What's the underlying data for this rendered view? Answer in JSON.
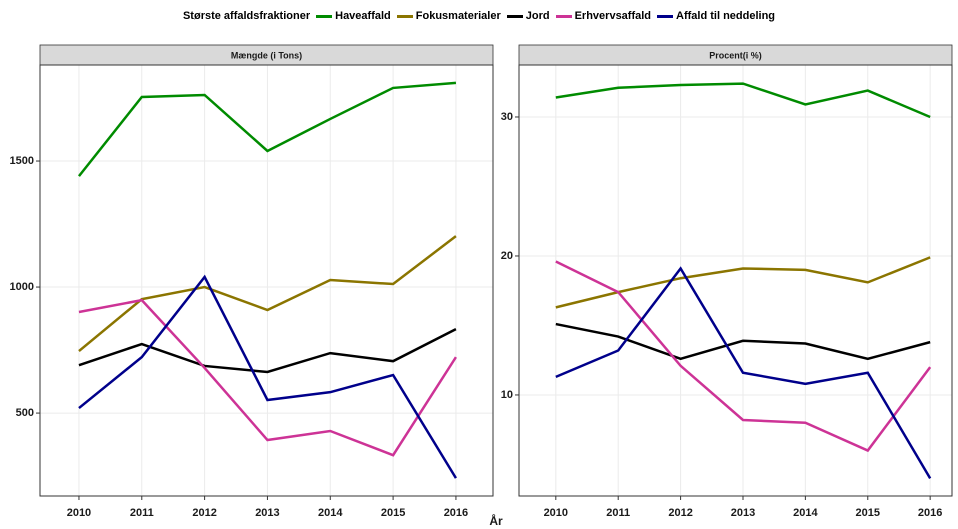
{
  "legend_title": "Største affaldsfraktioner",
  "xlabel": "År",
  "chart_data": [
    {
      "type": "line",
      "title": "Mængde (i Tons)",
      "x": [
        2010,
        2011,
        2012,
        2013,
        2014,
        2015,
        2016
      ],
      "xlim": [
        2009.38,
        2016.59
      ],
      "xticks": [
        2010,
        2011,
        2012,
        2013,
        2014,
        2015,
        2016
      ],
      "ylim": [
        171,
        1881
      ],
      "yticks": [
        500,
        1000,
        1500
      ],
      "grid": true,
      "series": [
        {
          "name": "Haveaffald",
          "color": "#008b00",
          "values": [
            1440,
            1754,
            1762,
            1540,
            1667,
            1790,
            1810
          ]
        },
        {
          "name": "Fokusmaterialer",
          "color": "#8b7500",
          "values": [
            746,
            952,
            1000,
            909,
            1028,
            1012,
            1202
          ]
        },
        {
          "name": "Jord",
          "color": "#000000",
          "values": [
            690,
            774,
            687,
            663,
            738,
            706,
            833
          ]
        },
        {
          "name": "Erhvervsaffald",
          "color": "#cd3396",
          "values": [
            901,
            948,
            679,
            393,
            429,
            333,
            722
          ]
        },
        {
          "name": "Affald til neddeling",
          "color": "#00008b",
          "values": [
            520,
            722,
            1040,
            552,
            583,
            651,
            242
          ]
        }
      ]
    },
    {
      "type": "line",
      "title": "Procent(i %)",
      "x": [
        2010,
        2011,
        2012,
        2013,
        2014,
        2015,
        2016
      ],
      "xlim": [
        2009.41,
        2016.35
      ],
      "xticks": [
        2010,
        2011,
        2012,
        2013,
        2014,
        2015,
        2016
      ],
      "ylim": [
        2.73,
        33.74
      ],
      "yticks": [
        10,
        20,
        30
      ],
      "grid": true,
      "series": [
        {
          "color": "#008b00",
          "values": [
            31.4,
            32.1,
            32.3,
            32.4,
            30.9,
            31.9,
            30.0
          ]
        },
        {
          "color": "#8b7500",
          "values": [
            16.3,
            17.4,
            18.4,
            19.1,
            19.0,
            18.1,
            19.9
          ]
        },
        {
          "color": "#000000",
          "values": [
            15.1,
            14.2,
            12.6,
            13.9,
            13.7,
            12.6,
            13.8
          ]
        },
        {
          "color": "#cd3396",
          "values": [
            19.6,
            17.4,
            12.1,
            8.2,
            8.0,
            6.0,
            12.0
          ]
        },
        {
          "color": "#00008b",
          "values": [
            11.3,
            13.2,
            19.1,
            11.6,
            10.8,
            11.6,
            4.0
          ]
        }
      ]
    }
  ]
}
